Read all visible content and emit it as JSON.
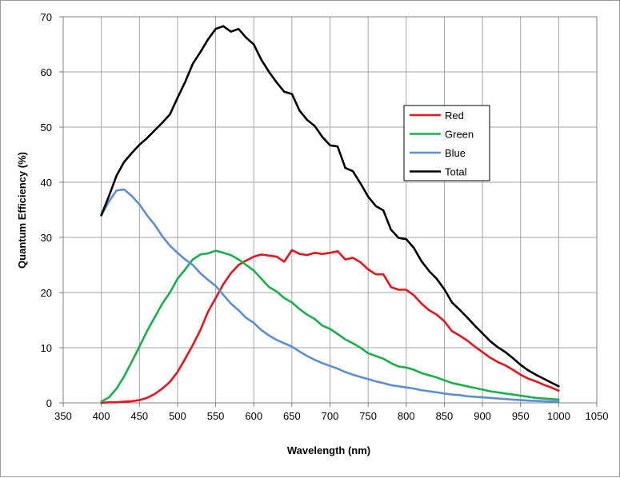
{
  "chart_data": {
    "type": "line",
    "title": "",
    "xlabel": "Wavelength (nm)",
    "ylabel": "Quantum Efficiency (%)",
    "xlim": [
      350,
      1050
    ],
    "ylim": [
      0,
      70
    ],
    "xticks": [
      350,
      400,
      450,
      500,
      550,
      600,
      650,
      700,
      750,
      800,
      850,
      900,
      950,
      1000,
      1050
    ],
    "yticks": [
      0,
      10,
      20,
      30,
      40,
      50,
      60,
      70
    ],
    "grid": true,
    "legend_position": "right",
    "x": [
      400,
      410,
      420,
      430,
      440,
      450,
      460,
      470,
      480,
      490,
      500,
      510,
      520,
      530,
      540,
      550,
      560,
      570,
      580,
      590,
      600,
      610,
      620,
      630,
      640,
      650,
      660,
      670,
      680,
      690,
      700,
      710,
      720,
      730,
      740,
      750,
      760,
      770,
      780,
      790,
      800,
      810,
      820,
      830,
      840,
      850,
      860,
      870,
      880,
      890,
      900,
      910,
      920,
      930,
      940,
      950,
      960,
      970,
      980,
      990,
      1000
    ],
    "series": [
      {
        "name": "Red",
        "color": "#e8141b",
        "values": [
          0,
          0.1,
          0.1,
          0.2,
          0.3,
          0.5,
          0.9,
          1.6,
          2.6,
          3.8,
          5.6,
          8,
          10.5,
          13.2,
          16.5,
          19,
          21.5,
          23.5,
          25,
          25.8,
          26.5,
          26.9,
          26.7,
          26.5,
          25.6,
          27.7,
          27,
          26.8,
          27.2,
          27,
          27.2,
          27.5,
          26,
          26.3,
          25.5,
          24.2,
          23.3,
          23.3,
          21,
          20.5,
          20.5,
          19.5,
          18,
          16.8,
          16,
          14.8,
          13,
          12.2,
          11.3,
          10.2,
          9.2,
          8.2,
          7.4,
          6.8,
          6,
          5.1,
          4.4,
          3.9,
          3.3,
          2.8,
          2.2
        ]
      },
      {
        "name": "Green",
        "color": "#17b04a",
        "values": [
          0.2,
          1,
          2.6,
          4.8,
          7.5,
          10.2,
          13,
          15.5,
          18,
          20,
          22.5,
          24.2,
          26,
          26.9,
          27.1,
          27.6,
          27.2,
          26.8,
          26,
          25,
          24,
          22.5,
          21,
          20.2,
          19,
          18.2,
          17,
          16,
          15.2,
          14,
          13.4,
          12.5,
          11.5,
          10.8,
          10,
          9,
          8.5,
          8,
          7.2,
          6.6,
          6.4,
          6,
          5.4,
          5,
          4.6,
          4.1,
          3.6,
          3.3,
          3,
          2.7,
          2.4,
          2.1,
          1.9,
          1.7,
          1.5,
          1.3,
          1.1,
          0.9,
          0.8,
          0.7,
          0.6
        ]
      },
      {
        "name": "Blue",
        "color": "#5b8fd0",
        "values": [
          34,
          36.5,
          38.5,
          38.7,
          37.5,
          36,
          34,
          32.3,
          30.2,
          28.5,
          27.2,
          26,
          25,
          23.5,
          22.3,
          21.2,
          19.6,
          18,
          16.8,
          15.4,
          14.5,
          13.2,
          12.2,
          11.4,
          10.8,
          10.2,
          9.3,
          8.5,
          7.8,
          7.2,
          6.7,
          6.2,
          5.6,
          5.1,
          4.7,
          4.3,
          3.9,
          3.6,
          3.2,
          3,
          2.8,
          2.6,
          2.3,
          2.1,
          1.9,
          1.7,
          1.5,
          1.4,
          1.2,
          1.1,
          1,
          0.9,
          0.8,
          0.7,
          0.6,
          0.5,
          0.4,
          0.35,
          0.3,
          0.25,
          0.2
        ]
      },
      {
        "name": "Total",
        "color": "#000000",
        "values": [
          34,
          37.5,
          41.2,
          43.7,
          45.3,
          46.8,
          48,
          49.4,
          50.8,
          52.3,
          55.3,
          58.2,
          61.5,
          63.6,
          65.9,
          67.8,
          68.3,
          67.3,
          67.8,
          66.2,
          65,
          62.2,
          60,
          58.1,
          56.4,
          56,
          53,
          51.3,
          50.2,
          48.2,
          46.7,
          46.5,
          42.6,
          42,
          39.8,
          37.4,
          35.7,
          34.9,
          31.4,
          29.9,
          29.7,
          28.1,
          25.7,
          23.9,
          22.5,
          20.6,
          18.2,
          16.9,
          15.5,
          14,
          12.6,
          11.2,
          10.1,
          9.2,
          8.1,
          6.9,
          5.9,
          5.1,
          4.4,
          3.7,
          3
        ]
      }
    ]
  }
}
